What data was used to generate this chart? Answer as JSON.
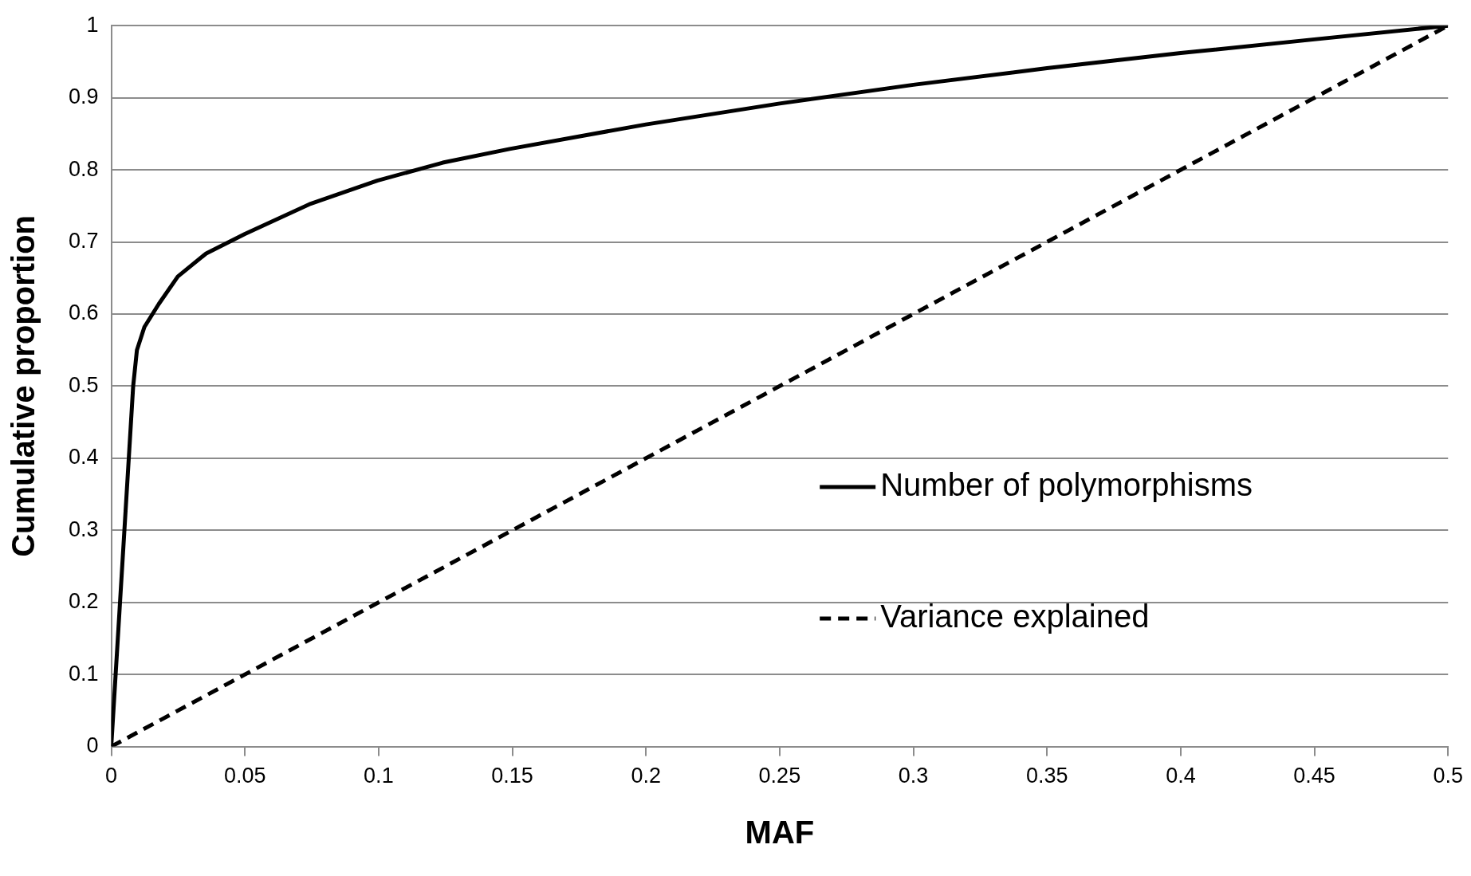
{
  "chart_data": {
    "type": "line",
    "xlabel": "MAF",
    "ylabel": "Cumulative proportion",
    "xlim": [
      0,
      0.5
    ],
    "xticks": [
      0,
      0.05,
      0.1,
      0.15,
      0.2,
      0.25,
      0.3,
      0.35,
      0.4,
      0.45,
      0.5
    ],
    "ylim": [
      0,
      1
    ],
    "yticks": [
      0,
      0.1,
      0.2,
      0.3,
      0.4,
      0.5,
      0.6,
      0.7,
      0.8,
      0.9,
      1
    ],
    "grid": "y",
    "legend": "right",
    "marker": "none",
    "series": [
      {
        "name": "Number of polymorphisms",
        "color": "#000000",
        "line_style": "solid",
        "x": [
          0,
          0.0082,
          0.0096,
          0.0124,
          0.0178,
          0.0249,
          0.0355,
          0.05,
          0.0746,
          0.0995,
          0.124,
          0.149,
          0.2,
          0.25,
          0.3,
          0.35,
          0.4,
          0.45,
          0.5
        ],
        "values": [
          0,
          0.5,
          0.55,
          0.582,
          0.614,
          0.652,
          0.684,
          0.711,
          0.753,
          0.785,
          0.81,
          0.829,
          0.863,
          0.892,
          0.918,
          0.941,
          0.962,
          0.981,
          1
        ]
      },
      {
        "name": "Variance explained",
        "color": "#000000",
        "line_style": "dashed",
        "x": [
          0,
          0.5
        ],
        "values": [
          0,
          1
        ]
      }
    ]
  }
}
